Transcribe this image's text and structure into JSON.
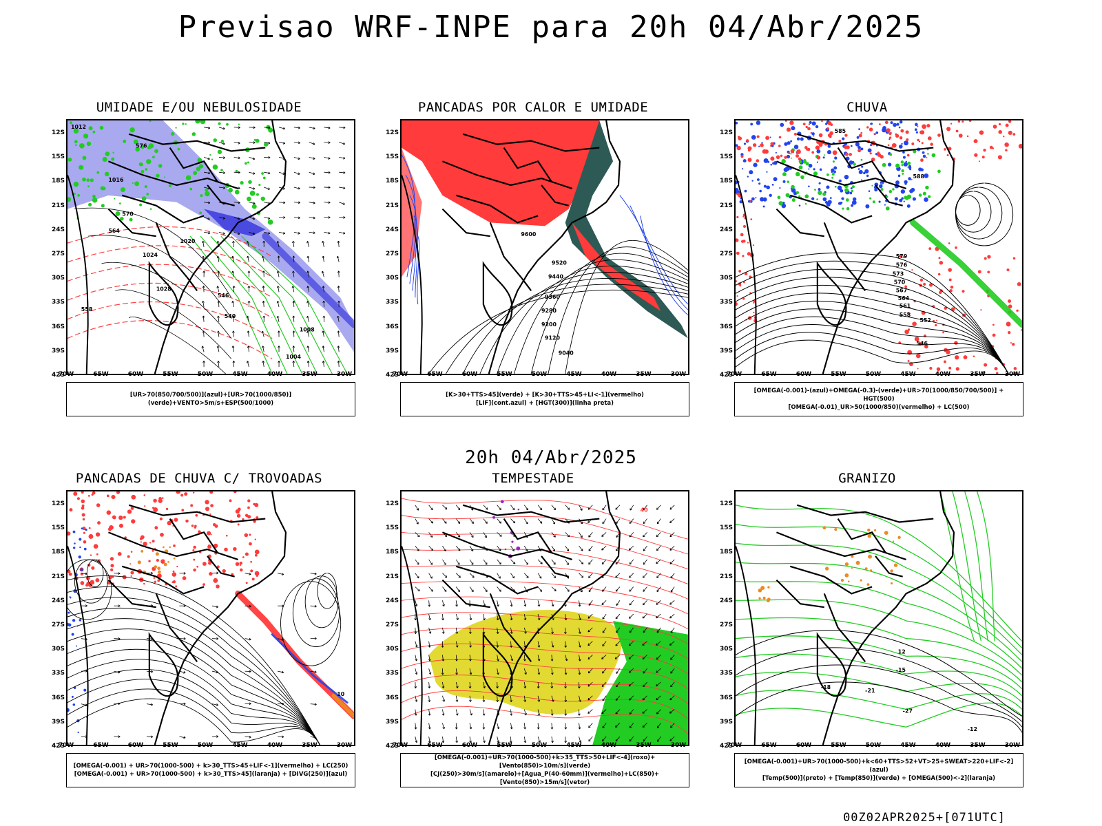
{
  "title": "Previsao WRF-INPE  para 20h 04/Abr/2025",
  "mid_title": "20h 04/Abr/2025",
  "footer": "00Z02APR2025+[071UTC]",
  "axes": {
    "lat_labels": [
      "12S",
      "15S",
      "18S",
      "21S",
      "24S",
      "27S",
      "30S",
      "33S",
      "36S",
      "39S",
      "42S"
    ],
    "lon_labels": [
      "70W",
      "65W",
      "60W",
      "55W",
      "50W",
      "45W",
      "40W",
      "35W",
      "30W"
    ]
  },
  "colors": {
    "humidity_blue": "#a9a9f0",
    "humidity_dark_blue": "#4a4ae0",
    "green": "#22cc22",
    "red": "#ff3b3b",
    "dark_teal": "#2d5a55",
    "yellow": "#e2d933",
    "orange": "#ee8a22",
    "blue": "#2244ee"
  },
  "panels": [
    {
      "id": "umidade",
      "title": "UMIDADE E/OU NEBULOSIDADE",
      "legend": [
        "[UR>70(850/700/500)](azul)+[UR>70(1000/850)](verde)+VENTO>5m/s+ESP(500/1000)"
      ],
      "contour_labels": [
        "1012",
        "1016",
        "1020",
        "1024",
        "1028",
        "1008",
        "1004",
        "576",
        "570",
        "564",
        "558",
        "546",
        "540"
      ]
    },
    {
      "id": "pancadas-calor",
      "title": "PANCADAS POR CALOR E UMIDADE",
      "legend": [
        "[K>30+TTS>45](verde) + [K>30+TTS>45+LI<-1](vermelho)",
        "[LIF](cont.azul) + [HGT(300)](linha preta)"
      ],
      "contour_labels": [
        "9600",
        "9520",
        "9440",
        "9360",
        "9280",
        "9200",
        "9120",
        "9040"
      ]
    },
    {
      "id": "chuva",
      "title": "CHUVA",
      "legend": [
        "[OMEGA(-0.001)-(azul)+OMEGA(-0.3)-(verde)+UR>70(1000/850/700/500)] + HGT(500)",
        "[OMEGA(-0.01)_UR>50(1000/850)(vermelho) + LC(500)"
      ],
      "contour_labels": [
        "585",
        "588",
        "579",
        "576",
        "573",
        "570",
        "567",
        "564",
        "561",
        "558",
        "552",
        "546"
      ]
    },
    {
      "id": "pancadas-trovoadas",
      "title": "PANCADAS DE CHUVA C/ TROVOADAS",
      "legend": [
        "[OMEGA(-0.001) + UR>70(1000-500) + k>30_TTS>45+LIF<-1](vermelho) + LC(250)",
        "[OMEGA(-0.001) + UR>70(1000-500) + k>30_TTS>45](laranja) + [DIVG(250)](azul)"
      ],
      "contour_labels": [
        "10"
      ]
    },
    {
      "id": "tempestade",
      "title": "TEMPESTADE",
      "legend": [
        "[OMEGA(-0.001)+UR>70(1000-500)+k>35_TTS>50+LIF<-4](roxo)+[Vento(850)>10m/s](verde)",
        "[CJ(250)>30m/s](amarelo)+[Agua_P(40-60mm)](vermelho)+LC(850)+[Vento(850)>15m/s](vetor)"
      ],
      "contour_labels": [
        "40"
      ]
    },
    {
      "id": "granizo",
      "title": "GRANIZO",
      "legend": [
        "[OMEGA(-0.001)+UR>70(1000-500)+k<60+TTS>52+VT>25+SWEAT>220+LIF<-2](azul)",
        "[Temp(500)](preto) + [Temp(850)](verde) + [OMEGA(500)<-2](laranja)"
      ],
      "contour_labels": [
        "-15",
        "-18",
        "-21",
        "-27",
        "-12",
        "12"
      ]
    }
  ]
}
